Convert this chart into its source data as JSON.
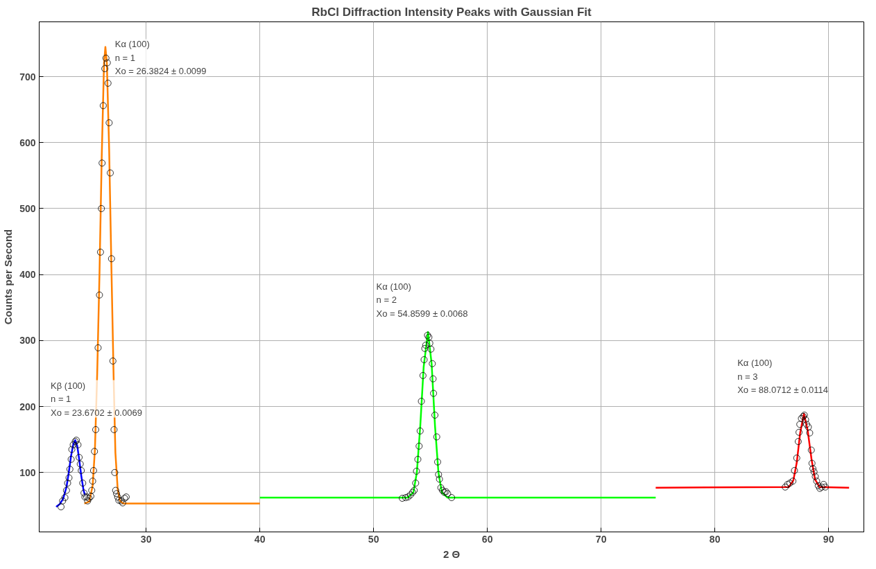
{
  "chart_data": {
    "type": "scatter",
    "title": "RbCl Diffraction Intensity Peaks with Gaussian Fit",
    "xlabel": "2 Θ",
    "ylabel": "Counts per Second",
    "xlim": [
      20.6,
      93.1
    ],
    "ylim": [
      10,
      783
    ],
    "xticks": [
      30,
      40,
      50,
      60,
      70,
      80,
      90
    ],
    "yticks": [
      100,
      200,
      300,
      400,
      500,
      600,
      700
    ],
    "grid": true,
    "series": [
      {
        "type": "line",
        "color": "#ff8000",
        "x": [
          24.57,
          25.0,
          25.3,
          25.5,
          25.7,
          25.9,
          26.1,
          26.3,
          26.42,
          26.55,
          26.75,
          26.95,
          27.15,
          27.3,
          27.5,
          27.7,
          28.0,
          40.0
        ],
        "values": [
          53,
          56,
          80,
          135,
          250,
          400,
          580,
          720,
          745,
          720,
          590,
          410,
          240,
          130,
          75,
          57,
          53,
          53
        ]
      },
      {
        "type": "line",
        "color": "#0000ff",
        "x": [
          22.09,
          22.4,
          22.7,
          23.0,
          23.2,
          23.4,
          23.6,
          23.77,
          23.95,
          24.1,
          24.3,
          24.5,
          24.63
        ],
        "values": [
          48,
          52,
          60,
          78,
          100,
          125,
          143,
          149,
          140,
          122,
          95,
          73,
          66
        ]
      },
      {
        "type": "line",
        "color": "#00ff00",
        "x": [
          40.0,
          53.0,
          53.5,
          53.8,
          54.1,
          54.4,
          54.78,
          55.1,
          55.4,
          55.7,
          56.0,
          56.5,
          74.8
        ],
        "values": [
          62,
          62,
          70,
          100,
          170,
          260,
          313,
          265,
          170,
          100,
          70,
          62,
          62
        ]
      },
      {
        "type": "line",
        "color": "#ff0000",
        "x": [
          74.8,
          86.5,
          86.9,
          87.2,
          87.5,
          87.83,
          88.15,
          88.5,
          88.8,
          89.2,
          91.8
        ],
        "values": [
          77,
          78,
          88,
          115,
          160,
          189,
          165,
          120,
          90,
          78,
          77
        ]
      },
      {
        "color": "#000000",
        "marker": "circle",
        "x": [
          22.52,
          22.66,
          22.86,
          23.0,
          23.1,
          23.22,
          23.3,
          23.41,
          23.47,
          23.59,
          23.77,
          23.87,
          24.01,
          24.11,
          24.21,
          24.3,
          24.43,
          24.54,
          24.62,
          24.78
        ],
        "values": [
          48,
          57,
          62,
          73,
          84,
          92,
          105,
          120,
          135,
          142,
          147,
          149,
          142,
          123,
          113,
          103,
          84,
          69,
          63,
          63
        ]
      },
      {
        "color": "#000000",
        "marker": "circle",
        "x": [
          24.86,
          24.98,
          25.14,
          25.22,
          25.3,
          25.38,
          25.46,
          25.57,
          25.78,
          25.9,
          25.99,
          26.07,
          26.13,
          26.23,
          26.37,
          26.47,
          26.59,
          26.65,
          26.75,
          26.85,
          26.96,
          27.08,
          27.18,
          27.24,
          27.32,
          27.4,
          27.5,
          27.6,
          27.8,
          27.94,
          28.11,
          28.25
        ],
        "values": [
          57,
          61,
          64,
          73,
          87,
          103,
          132,
          165,
          289,
          369,
          434,
          500,
          569,
          656,
          712,
          728,
          721,
          690,
          630,
          554,
          424,
          269,
          165,
          100,
          73,
          68,
          63,
          58,
          57,
          54,
          61,
          63
        ]
      },
      {
        "color": "#000000",
        "marker": "circle",
        "x": [
          52.52,
          52.82,
          53.03,
          53.23,
          53.43,
          53.57,
          53.7,
          53.77,
          53.89,
          54.0,
          54.09,
          54.2,
          54.34,
          54.44,
          54.5,
          54.58,
          54.74,
          54.86,
          54.94,
          55.04,
          55.16,
          55.23,
          55.27,
          55.39,
          55.55,
          55.63,
          55.71,
          55.79,
          55.91,
          56.05,
          56.21,
          56.36,
          56.51,
          56.86
        ],
        "values": [
          61,
          62,
          63,
          66,
          70,
          73,
          84,
          102,
          120,
          140,
          163,
          208,
          247,
          271,
          288,
          293,
          308,
          305,
          296,
          287,
          265,
          242,
          220,
          187,
          154,
          116,
          97,
          90,
          77,
          73,
          70,
          71,
          68,
          62
        ]
      },
      {
        "color": "#000000",
        "marker": "circle",
        "x": [
          86.19,
          86.39,
          86.6,
          86.86,
          87.0,
          87.2,
          87.33,
          87.4,
          87.47,
          87.61,
          87.77,
          87.87,
          87.98,
          88.07,
          88.22,
          88.34,
          88.48,
          88.54,
          88.62,
          88.72,
          88.83,
          88.95,
          89.09,
          89.23,
          89.39,
          89.56,
          89.71
        ],
        "values": [
          78,
          82,
          84,
          87,
          103,
          122,
          147,
          161,
          173,
          182,
          185,
          187,
          180,
          173,
          169,
          160,
          134,
          114,
          106,
          101,
          94,
          87,
          80,
          76,
          78,
          82,
          78
        ]
      }
    ],
    "annotations": [
      "Kα (100)\nn = 1\nXo = 26.3824 ± 0.0099",
      "Kβ (100)\nn = 1\nXo = 23.6702 ± 0.0069",
      "Kα (100)\nn = 2\nXo = 54.8599 ± 0.0068",
      "Kα (100)\nn = 3\nXo = 88.0712 ± 0.0114"
    ]
  }
}
